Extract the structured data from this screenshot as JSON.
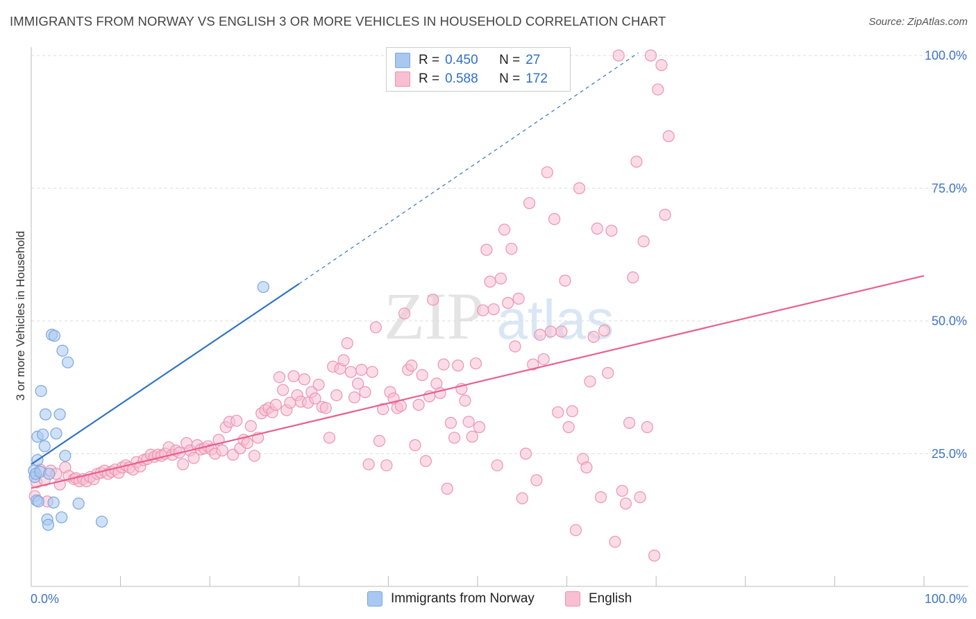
{
  "title": "IMMIGRANTS FROM NORWAY VS ENGLISH 3 OR MORE VEHICLES IN HOUSEHOLD CORRELATION CHART",
  "source": "Source: ZipAtlas.com",
  "watermark": {
    "zip": "ZIP",
    "atlas": "atlas"
  },
  "legend": {
    "rows": [
      {
        "r_label": "R =",
        "r_value": "0.450",
        "n_label": "N =",
        "n_value": "27",
        "color": "#a8c8f0",
        "border": "#7aa6df"
      },
      {
        "r_label": "R =",
        "r_value": "0.588",
        "n_label": "N =",
        "n_value": "172",
        "color": "#f8bfd2",
        "border": "#ec93b2"
      }
    ]
  },
  "bottom_legend": [
    {
      "label": "Immigrants from Norway",
      "color": "#a8c8f0",
      "border": "#7aa6df"
    },
    {
      "label": "English",
      "color": "#f8bfd2",
      "border": "#ec93b2"
    }
  ],
  "chart_data": {
    "type": "scatter",
    "title": "IMMIGRANTS FROM NORWAY VS ENGLISH 3 OR MORE VEHICLES IN HOUSEHOLD CORRELATION CHART",
    "xlabel": "",
    "ylabel": "3 or more Vehicles in Household",
    "xlim": [
      0,
      100
    ],
    "ylim": [
      0,
      105
    ],
    "x_tick_labels": [
      "0.0%",
      "100.0%"
    ],
    "y_tick_labels": [
      "25.0%",
      "50.0%",
      "75.0%",
      "100.0%"
    ],
    "y_ticks": [
      25,
      50,
      75,
      100
    ],
    "series": [
      {
        "name": "Immigrants from Norway",
        "color": "#a8c8f0",
        "stroke": "#7aa6df",
        "line_color": "#2f72c8",
        "trend": {
          "x0": 0,
          "y0": 23.0,
          "x1": 30,
          "y1": 57.0,
          "dash_to_x": 68,
          "dash_to_y": 100.5
        },
        "points": [
          [
            0.3,
            21.8
          ],
          [
            0.4,
            20.6
          ],
          [
            0.5,
            21.2
          ],
          [
            0.6,
            16.2
          ],
          [
            0.7,
            23.8
          ],
          [
            0.7,
            28.2
          ],
          [
            0.8,
            16.0
          ],
          [
            1.0,
            21.6
          ],
          [
            1.1,
            36.8
          ],
          [
            1.3,
            28.6
          ],
          [
            1.5,
            26.4
          ],
          [
            1.6,
            32.4
          ],
          [
            1.8,
            12.6
          ],
          [
            1.9,
            11.6
          ],
          [
            2.0,
            21.2
          ],
          [
            2.3,
            47.4
          ],
          [
            2.5,
            15.8
          ],
          [
            2.6,
            47.2
          ],
          [
            2.8,
            28.8
          ],
          [
            3.2,
            32.4
          ],
          [
            3.4,
            13.0
          ],
          [
            3.5,
            44.4
          ],
          [
            3.8,
            24.6
          ],
          [
            4.1,
            42.2
          ],
          [
            5.3,
            15.6
          ],
          [
            7.9,
            12.2
          ],
          [
            26.0,
            56.4
          ]
        ]
      },
      {
        "name": "English",
        "color": "#f8bfd2",
        "stroke": "#ec93b2",
        "line_color": "#e8608c",
        "trend": {
          "x0": 0,
          "y0": 18.5,
          "x1": 100,
          "y1": 58.5
        },
        "points": [
          [
            0.4,
            17.0
          ],
          [
            0.6,
            19.6
          ],
          [
            1.0,
            22.0
          ],
          [
            1.5,
            20.0
          ],
          [
            1.8,
            16.0
          ],
          [
            2.2,
            21.8
          ],
          [
            2.8,
            21.2
          ],
          [
            3.2,
            19.2
          ],
          [
            3.8,
            22.4
          ],
          [
            4.2,
            20.8
          ],
          [
            4.8,
            20.2
          ],
          [
            5.0,
            20.4
          ],
          [
            5.4,
            19.8
          ],
          [
            5.8,
            20.2
          ],
          [
            6.2,
            19.8
          ],
          [
            6.6,
            20.6
          ],
          [
            7.0,
            20.2
          ],
          [
            7.4,
            21.2
          ],
          [
            7.8,
            21.4
          ],
          [
            8.2,
            21.8
          ],
          [
            8.6,
            21.2
          ],
          [
            9.0,
            21.6
          ],
          [
            9.4,
            22.0
          ],
          [
            9.8,
            21.4
          ],
          [
            10.2,
            22.4
          ],
          [
            10.6,
            22.8
          ],
          [
            11.0,
            22.4
          ],
          [
            11.4,
            22.0
          ],
          [
            11.8,
            23.4
          ],
          [
            12.2,
            22.6
          ],
          [
            12.6,
            23.8
          ],
          [
            13.0,
            24.0
          ],
          [
            13.4,
            24.8
          ],
          [
            13.8,
            24.4
          ],
          [
            14.2,
            24.8
          ],
          [
            14.6,
            24.6
          ],
          [
            15.0,
            25.0
          ],
          [
            15.4,
            26.2
          ],
          [
            15.8,
            24.8
          ],
          [
            16.2,
            25.6
          ],
          [
            16.6,
            25.2
          ],
          [
            17.0,
            23.0
          ],
          [
            17.4,
            27.0
          ],
          [
            17.8,
            25.6
          ],
          [
            18.2,
            24.2
          ],
          [
            18.6,
            26.6
          ],
          [
            19.0,
            25.8
          ],
          [
            19.4,
            26.0
          ],
          [
            19.8,
            26.4
          ],
          [
            20.2,
            25.8
          ],
          [
            20.6,
            25.0
          ],
          [
            21.0,
            27.6
          ],
          [
            21.4,
            25.6
          ],
          [
            21.8,
            30.0
          ],
          [
            22.2,
            31.0
          ],
          [
            22.6,
            24.8
          ],
          [
            23.0,
            31.2
          ],
          [
            23.4,
            26.0
          ],
          [
            23.8,
            27.6
          ],
          [
            24.2,
            27.0
          ],
          [
            24.6,
            30.2
          ],
          [
            25.0,
            24.6
          ],
          [
            25.4,
            28.0
          ],
          [
            25.8,
            32.6
          ],
          [
            26.2,
            33.2
          ],
          [
            26.6,
            33.6
          ],
          [
            27.0,
            32.8
          ],
          [
            27.4,
            34.2
          ],
          [
            27.8,
            39.4
          ],
          [
            28.2,
            37.0
          ],
          [
            28.6,
            33.2
          ],
          [
            29.0,
            34.6
          ],
          [
            29.4,
            39.6
          ],
          [
            29.8,
            36.0
          ],
          [
            30.2,
            34.8
          ],
          [
            30.6,
            39.0
          ],
          [
            31.0,
            34.6
          ],
          [
            31.4,
            36.6
          ],
          [
            31.8,
            35.4
          ],
          [
            32.2,
            38.0
          ],
          [
            32.6,
            33.8
          ],
          [
            33.0,
            33.6
          ],
          [
            33.4,
            28.0
          ],
          [
            33.8,
            41.4
          ],
          [
            34.2,
            36.0
          ],
          [
            34.6,
            41.0
          ],
          [
            35.0,
            42.6
          ],
          [
            35.4,
            45.8
          ],
          [
            35.8,
            40.4
          ],
          [
            36.2,
            35.6
          ],
          [
            36.6,
            38.2
          ],
          [
            37.0,
            40.8
          ],
          [
            37.4,
            36.6
          ],
          [
            37.8,
            23.0
          ],
          [
            38.2,
            40.4
          ],
          [
            38.6,
            48.8
          ],
          [
            39.0,
            27.4
          ],
          [
            39.4,
            33.4
          ],
          [
            39.8,
            22.8
          ],
          [
            40.2,
            36.6
          ],
          [
            40.6,
            35.4
          ],
          [
            41.0,
            33.6
          ],
          [
            41.4,
            34.0
          ],
          [
            41.8,
            51.4
          ],
          [
            42.2,
            40.8
          ],
          [
            42.6,
            41.6
          ],
          [
            43.0,
            26.6
          ],
          [
            43.4,
            34.2
          ],
          [
            43.8,
            39.8
          ],
          [
            44.2,
            23.6
          ],
          [
            44.6,
            35.8
          ],
          [
            45.0,
            54.0
          ],
          [
            45.4,
            38.2
          ],
          [
            45.8,
            36.4
          ],
          [
            46.2,
            41.8
          ],
          [
            46.6,
            18.4
          ],
          [
            47.0,
            30.8
          ],
          [
            47.4,
            28.0
          ],
          [
            47.8,
            41.6
          ],
          [
            48.2,
            37.2
          ],
          [
            48.6,
            35.0
          ],
          [
            49.0,
            31.0
          ],
          [
            49.4,
            28.2
          ],
          [
            49.8,
            42.0
          ],
          [
            50.2,
            30.0
          ],
          [
            50.6,
            52.0
          ],
          [
            51.0,
            63.4
          ],
          [
            51.4,
            57.4
          ],
          [
            51.8,
            52.2
          ],
          [
            52.2,
            22.8
          ],
          [
            52.6,
            58.0
          ],
          [
            53.0,
            67.2
          ],
          [
            53.4,
            53.4
          ],
          [
            53.8,
            63.6
          ],
          [
            54.2,
            45.2
          ],
          [
            54.6,
            54.2
          ],
          [
            55.0,
            16.6
          ],
          [
            55.4,
            25.0
          ],
          [
            55.8,
            72.2
          ],
          [
            56.2,
            41.8
          ],
          [
            56.6,
            20.0
          ],
          [
            57.0,
            47.4
          ],
          [
            57.4,
            42.8
          ],
          [
            57.8,
            78.0
          ],
          [
            58.2,
            48.0
          ],
          [
            58.6,
            69.2
          ],
          [
            59.0,
            32.8
          ],
          [
            59.4,
            48.0
          ],
          [
            59.8,
            57.6
          ],
          [
            60.2,
            30.0
          ],
          [
            60.6,
            33.0
          ],
          [
            61.0,
            10.6
          ],
          [
            61.4,
            75.0
          ],
          [
            61.8,
            24.0
          ],
          [
            62.2,
            22.4
          ],
          [
            62.6,
            38.6
          ],
          [
            63.0,
            47.0
          ],
          [
            63.4,
            67.4
          ],
          [
            63.8,
            16.8
          ],
          [
            64.2,
            48.2
          ],
          [
            64.6,
            40.2
          ],
          [
            65.0,
            67.0
          ],
          [
            65.4,
            8.4
          ],
          [
            65.8,
            100.0
          ],
          [
            66.2,
            18.0
          ],
          [
            66.6,
            15.6
          ],
          [
            67.0,
            30.8
          ],
          [
            67.4,
            58.2
          ],
          [
            67.8,
            80.0
          ],
          [
            68.2,
            16.8
          ],
          [
            68.6,
            65.0
          ],
          [
            69.0,
            30.0
          ],
          [
            69.4,
            100.0
          ],
          [
            69.8,
            5.8
          ],
          [
            70.2,
            93.6
          ],
          [
            70.6,
            98.2
          ],
          [
            71.0,
            70.0
          ],
          [
            71.4,
            84.8
          ]
        ]
      }
    ]
  }
}
